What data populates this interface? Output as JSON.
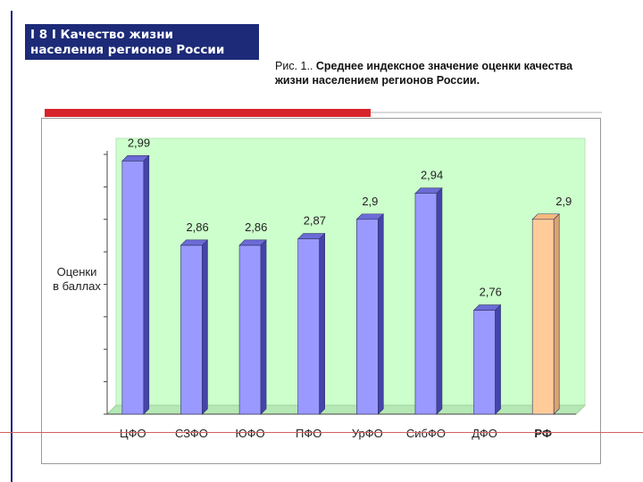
{
  "slide": {
    "title_lines": [
      "I 8 I  Качество жизни",
      "населения регионов России"
    ]
  },
  "caption": {
    "prefix": "Рис. 1.. ",
    "bold_line1": "Среднее индексное значение оценки качества",
    "line2": "жизни населением регионов России."
  },
  "colors": {
    "accent_red": "#d8232a",
    "title_bg": "#1c2a78",
    "plot_bg": "#ccffcc",
    "bar_main": "#9999ff",
    "bar_rf": "#ffcc99"
  },
  "chart_data": {
    "type": "bar",
    "title": "",
    "xlabel": "",
    "ylabel": "Оценки в баллах",
    "ylabel_lines": [
      "Оценки",
      "в баллах"
    ],
    "categories": [
      "ЦФО",
      "СЗФО",
      "ЮФО",
      "ПФО",
      "УрФО",
      "СибФО",
      "ДФО",
      "РФ"
    ],
    "values": [
      2.99,
      2.86,
      2.86,
      2.87,
      2.9,
      2.94,
      2.76,
      2.9
    ],
    "value_labels": [
      "2,99",
      "2,86",
      "2,86",
      "2,87",
      "2,9",
      "2,94",
      "2,76",
      "2,9"
    ],
    "highlight_category": "РФ",
    "ylim": [
      2.6,
      3.0
    ],
    "grid": false,
    "style": "3d-column",
    "legend": "none"
  }
}
